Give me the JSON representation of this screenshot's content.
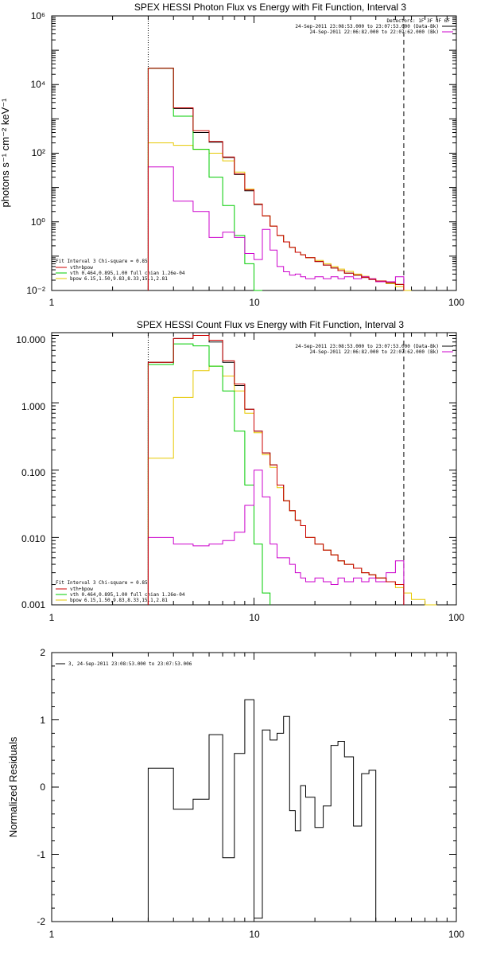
{
  "colors": {
    "data": "#000000",
    "total_fit": "#cc0000",
    "vth": "#00cc00",
    "bpow": "#e6c800",
    "background": "#cc00cc"
  },
  "chart_data": [
    {
      "type": "line",
      "title": "SPEX HESSI Photon Flux vs Energy with Fit Function, Interval 3",
      "ylabel": "photons s⁻¹ cm⁻² keV⁻¹",
      "xlabel": "",
      "xscale": "log",
      "yscale": "log",
      "xlim": [
        1,
        100
      ],
      "ylim": [
        0.01,
        1000000
      ],
      "x_tick_labels": [
        "1",
        "10",
        "100"
      ],
      "y_tick_labels": [
        "10⁻²",
        "10⁰",
        "10²",
        "10⁴",
        "10⁶"
      ],
      "vlines": [
        {
          "x": 3,
          "style": "dotted"
        },
        {
          "x": 55,
          "style": "dashed"
        }
      ],
      "bin_edges": [
        3,
        4,
        5,
        6,
        7,
        8,
        9,
        10,
        11,
        12,
        13,
        14,
        15,
        16,
        17,
        18,
        20,
        22,
        24,
        26,
        28,
        31,
        34,
        37,
        40,
        45,
        50,
        55,
        60
      ],
      "series": [
        {
          "name": "",
          "key": "data",
          "values": [
            30000,
            2000,
            400,
            210,
            75,
            24,
            8,
            3.2,
            1.5,
            0.75,
            0.4,
            0.26,
            0.18,
            0.13,
            0.11,
            0.09,
            0.07,
            0.055,
            0.045,
            0.038,
            0.032,
            0.028,
            0.024,
            0.021,
            0.018,
            0.016,
            0.015,
            null
          ]
        },
        {
          "name": "vth+bpow",
          "key": "total_fit",
          "values": [
            30000,
            2100,
            450,
            220,
            78,
            25,
            8.5,
            3.3,
            1.5,
            0.75,
            0.4,
            0.26,
            0.18,
            0.13,
            0.11,
            0.09,
            0.07,
            0.055,
            0.045,
            0.038,
            0.032,
            0.028,
            0.024,
            0.021,
            0.019,
            0.017,
            0.015,
            null
          ]
        },
        {
          "name": "vth 0.464,0.895,1.00 full chian 1.26e-04",
          "key": "vth",
          "values": [
            30000,
            1200,
            130,
            20,
            3,
            0.4,
            0.06,
            0.005,
            null,
            null,
            null,
            null,
            null,
            null,
            null,
            null,
            null,
            null,
            null,
            null,
            null,
            null,
            null,
            null,
            null,
            null,
            null,
            null
          ]
        },
        {
          "name": "bpow 6.15,1.50,9.83,8.33,15.1,2.81",
          "key": "bpow",
          "values": [
            200,
            170,
            130,
            100,
            60,
            28,
            9,
            3.3,
            1.5,
            0.75,
            0.4,
            0.26,
            0.18,
            0.13,
            0.11,
            0.09,
            0.075,
            0.06,
            0.05,
            0.042,
            0.036,
            0.03,
            0.026,
            0.022,
            0.019,
            0.016,
            0.013,
            0.01
          ]
        },
        {
          "name": "",
          "key": "background",
          "values": [
            40,
            4,
            2,
            0.35,
            0.5,
            0.35,
            0.12,
            0.08,
            0.6,
            0.15,
            0.05,
            0.035,
            0.028,
            0.03,
            0.025,
            0.022,
            0.025,
            0.022,
            0.025,
            0.022,
            0.025,
            0.022,
            0.025,
            0.022,
            0.018,
            0.018,
            0.025,
            null
          ]
        }
      ],
      "legend_left": [
        "Fit Interval 3   Chi-square = 0.85",
        "vth+bpow",
        "vth 0.464,0.895,1.00  full chian 1.26e-04",
        "bpow 6.15,1.50,9.83,8.33,15.1,2.81"
      ],
      "legend_right": [
        "Detectors: 1F 3F 4F 6F",
        "24-Sep-2011 23:08:53.000 to 23:07:53.000 (Data-Bk)",
        "24-Sep-2011 22:06:82.000 to 22:07:62.000 (Bk)"
      ]
    },
    {
      "type": "line",
      "title": "SPEX HESSI Count Flux vs Energy with Fit Function, Interval 3",
      "ylabel": "",
      "xlabel": "",
      "xscale": "log",
      "yscale": "log",
      "xlim": [
        1,
        100
      ],
      "ylim": [
        0.001,
        11
      ],
      "x_tick_labels": [
        "1",
        "10",
        "100"
      ],
      "y_tick_labels": [
        "0.001",
        "0.010",
        "0.100",
        "1.000",
        "10.000"
      ],
      "vlines": [
        {
          "x": 3,
          "style": "dotted"
        },
        {
          "x": 55,
          "style": "dashed"
        }
      ],
      "bin_edges": [
        3,
        4,
        5,
        6,
        7,
        8,
        9,
        10,
        11,
        12,
        13,
        14,
        15,
        16,
        17,
        18,
        20,
        22,
        24,
        26,
        28,
        31,
        34,
        37,
        40,
        45,
        50,
        55,
        60,
        70,
        80
      ],
      "series": [
        {
          "name": "",
          "key": "data",
          "values": [
            4,
            9,
            10,
            8,
            4,
            1.8,
            0.8,
            0.38,
            0.18,
            0.12,
            0.06,
            0.035,
            0.025,
            0.018,
            0.015,
            0.01,
            0.008,
            0.0065,
            0.0055,
            0.0045,
            0.004,
            0.0035,
            0.003,
            0.0028,
            0.0025,
            0.0022,
            0.002,
            null,
            null,
            null
          ]
        },
        {
          "name": "vth+bpow",
          "key": "total_fit",
          "values": [
            4,
            9,
            10,
            8.5,
            4.2,
            1.9,
            0.8,
            0.38,
            0.18,
            0.12,
            0.06,
            0.035,
            0.025,
            0.018,
            0.015,
            0.01,
            0.008,
            0.0065,
            0.0055,
            0.0045,
            0.004,
            0.0035,
            0.003,
            0.0028,
            0.0025,
            0.0022,
            0.002,
            null,
            null,
            null
          ]
        },
        {
          "name": "vth 0.464,0.895,1.00 full chian 1.26e-04",
          "key": "vth",
          "values": [
            3.7,
            7.5,
            7,
            3.5,
            1.5,
            0.38,
            0.06,
            0.008,
            0.0015,
            null,
            null,
            null,
            null,
            null,
            null,
            null,
            null,
            null,
            null,
            null,
            null,
            null,
            null,
            null,
            null,
            null,
            null,
            null,
            null,
            null
          ]
        },
        {
          "name": "bpow 6.15,1.50,9.83,8.33,15.1,2.81",
          "key": "bpow",
          "values": [
            0.15,
            1.2,
            3,
            3.5,
            2.5,
            1.5,
            0.7,
            0.36,
            0.17,
            0.11,
            0.055,
            0.035,
            0.025,
            0.018,
            0.015,
            0.01,
            0.008,
            0.0065,
            0.0055,
            0.0045,
            0.004,
            0.0035,
            0.003,
            0.0028,
            0.0025,
            0.0022,
            0.0018,
            0.0015,
            0.0012,
            0.001
          ]
        },
        {
          "name": "",
          "key": "background",
          "values": [
            0.01,
            0.008,
            0.0075,
            0.008,
            0.009,
            0.012,
            0.03,
            0.1,
            0.04,
            0.008,
            0.005,
            0.005,
            0.004,
            0.003,
            0.0025,
            0.0022,
            0.0025,
            0.0022,
            0.002,
            0.0025,
            0.0022,
            0.0025,
            0.0022,
            0.0025,
            0.0022,
            0.003,
            0.0045,
            null,
            null,
            null
          ]
        }
      ],
      "legend_left": [
        "Fit Interval 3   Chi-square = 0.85",
        "vth+bpow",
        "vth 0.464,0.895,1.00  full chian 1.26e-04",
        "bpow 6.15,1.50,9.83,8.33,15.1,2.81"
      ],
      "legend_right": [
        "24-Sep-2011 23:08:53.000 to 23:07:53.000 (Data-Bk)",
        "24-Sep-2011 22:06:82.000 to 22:07:62.000 (Bk)"
      ]
    },
    {
      "type": "line",
      "title": "",
      "ylabel": "Normalized Residuals",
      "xlabel": "",
      "xscale": "log",
      "yscale": "linear",
      "xlim": [
        1,
        100
      ],
      "ylim": [
        -2,
        2
      ],
      "x_tick_labels": [
        "1",
        "10",
        "100"
      ],
      "y_tick_labels": [
        "-2",
        "-1",
        "0",
        "1",
        "2"
      ],
      "bin_edges": [
        3,
        4,
        5,
        6,
        7,
        8,
        9,
        10,
        11,
        12,
        13,
        14,
        15,
        16,
        17,
        18,
        20,
        22,
        24,
        26,
        28,
        31,
        34,
        37,
        40,
        45,
        50,
        55
      ],
      "series": [
        {
          "name": "3, 24-Sep-2011 23:08:53.000 to 23:07:53.006",
          "key": "data",
          "values": [
            0.28,
            -0.33,
            -0.18,
            0.78,
            -1.05,
            0.5,
            1.3,
            -1.95,
            0.85,
            0.7,
            0.8,
            1.05,
            -0.35,
            -0.65,
            0.02,
            -0.15,
            -0.6,
            -0.28,
            0.62,
            0.68,
            0.45,
            -0.58,
            0.2,
            0.25,
            null,
            null,
            null
          ]
        }
      ],
      "legend_left": [
        "3, 24-Sep-2011 23:08:53.000 to 23:07:53.006"
      ]
    }
  ]
}
